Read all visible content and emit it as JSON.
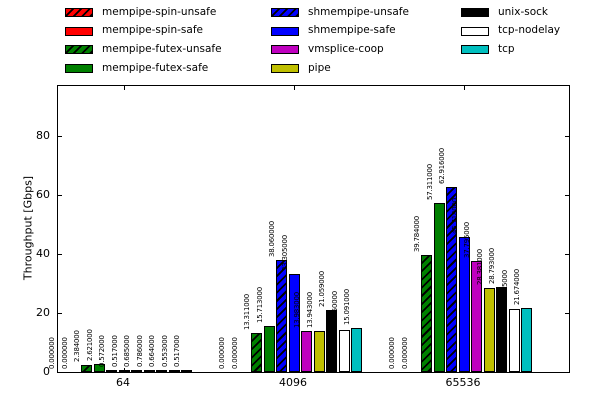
{
  "chart_data": {
    "type": "bar",
    "title": "",
    "xlabel": "",
    "ylabel": "Throughput [Gbps]",
    "categories": [
      "64",
      "4096",
      "65536"
    ],
    "yticks": [
      0,
      20,
      40,
      60,
      80
    ],
    "ylim": [
      0,
      97
    ],
    "grid": false,
    "legend_position": "top",
    "bar_label_decimals": 6,
    "axis_color": "#000000",
    "hatch_color": "#000000",
    "series": [
      {
        "name": "mempipe-spin-unsafe",
        "color": "#ff0000",
        "hatch": true,
        "values": [
          0.0,
          0.0,
          0.0
        ],
        "labels": [
          "0.000000",
          "0.000000",
          "0.000000"
        ]
      },
      {
        "name": "mempipe-spin-safe",
        "color": "#ff0000",
        "hatch": false,
        "values": [
          0.0,
          0.0,
          0.0
        ],
        "labels": [
          "0.000000",
          "0.000000",
          "0.000000"
        ]
      },
      {
        "name": "mempipe-futex-unsafe",
        "color": "#008000",
        "hatch": true,
        "values": [
          2.384,
          13.311,
          39.784
        ],
        "labels": [
          "2.384000",
          "13.311000",
          "39.784000"
        ]
      },
      {
        "name": "mempipe-futex-safe",
        "color": "#008000",
        "hatch": false,
        "values": [
          2.621,
          15.713,
          57.311
        ],
        "labels": [
          "2.621000",
          "15.713000",
          "57.311000"
        ]
      },
      {
        "name": "shmempipe-unsafe",
        "color": "#0000ff",
        "hatch": true,
        "values": [
          0.572,
          38.06,
          62.916
        ],
        "labels": [
          "0.572000",
          "38.060000",
          "62.916000"
        ]
      },
      {
        "name": "shmempipe-safe",
        "color": "#0000ff",
        "hatch": false,
        "values": [
          0.517,
          33.305,
          45.718
        ],
        "labels": [
          "0.517000",
          "33.305000",
          "45.718000"
        ]
      },
      {
        "name": "vmsplice-coop",
        "color": "#bf00bf",
        "hatch": false,
        "values": [
          0.685,
          13.983,
          37.795
        ],
        "labels": [
          "0.685000",
          "13.983000",
          "37.795000"
        ]
      },
      {
        "name": "pipe",
        "color": "#bfbf00",
        "hatch": false,
        "values": [
          0.786,
          13.943,
          28.381
        ],
        "labels": [
          "0.786000",
          "13.943000",
          "28.381000"
        ]
      },
      {
        "name": "unix-sock",
        "color": "#000000",
        "hatch": false,
        "values": [
          0.664,
          21.059,
          28.793
        ],
        "labels": [
          "0.664000",
          "21.059000",
          "28.793000"
        ]
      },
      {
        "name": "tcp-nodelay",
        "color": "#ffffff",
        "hatch": false,
        "values": [
          0.553,
          14.35,
          21.355
        ],
        "labels": [
          "0.553000",
          "14.350000",
          "21.355000"
        ]
      },
      {
        "name": "tcp",
        "color": "#00bfbf",
        "hatch": false,
        "values": [
          0.517,
          15.091,
          21.674
        ],
        "labels": [
          "0.517000",
          "15.091000",
          "21.674000"
        ]
      }
    ]
  }
}
